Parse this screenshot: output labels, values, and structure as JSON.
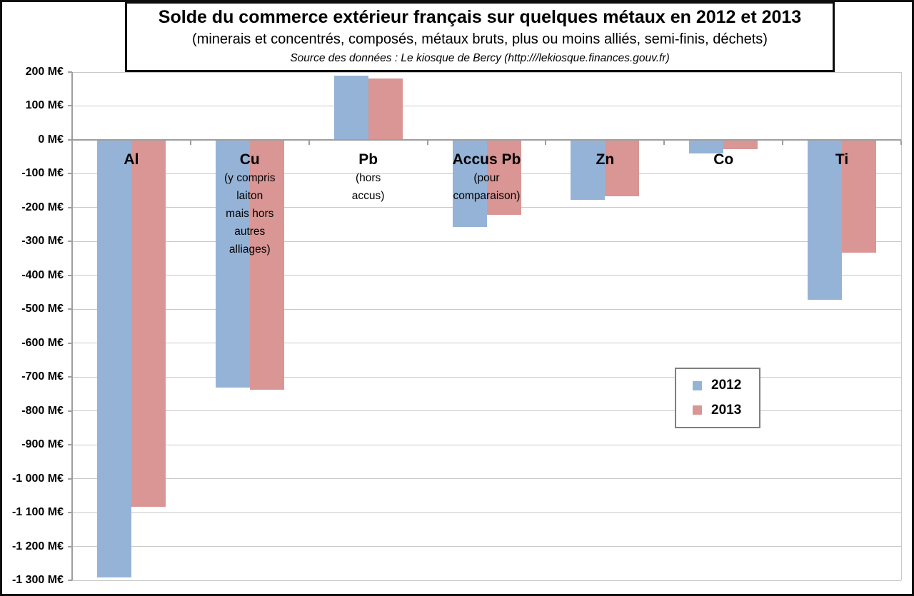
{
  "title": {
    "main": "Solde du commerce extérieur français sur quelques métaux en 2012 et 2013",
    "subtitle": "(minerais et concentrés, composés, métaux bruts, plus ou moins alliés, semi-finis, déchets)",
    "source": "Source des données : Le kiosque de Bercy (http:///lekiosque.finances.gouv.fr)"
  },
  "legend": {
    "items": [
      {
        "label": "2012",
        "color": "#95B3D7"
      },
      {
        "label": "2013",
        "color": "#D99694"
      }
    ]
  },
  "colors": {
    "series_2012": "#95B3D7",
    "series_2013": "#D99694",
    "gridline": "#C9C9C9",
    "axis": "#9E9E9E",
    "frame_border": "#0D0D0D",
    "legend_border": "#7F7F7F"
  },
  "chart_data": {
    "type": "bar",
    "title": "Solde du commerce extérieur français sur quelques métaux en 2012 et 2013",
    "subtitle": "(minerais et concentrés, composés, métaux bruts, plus ou moins alliés, semi-finis, déchets)",
    "source": "Source des données : Le kiosque de Bercy (http:///lekiosque.finances.gouv.fr)",
    "unit": "M€",
    "categories": [
      "Al",
      "Cu",
      "Pb",
      "Accus Pb",
      "Zn",
      "Co",
      "Ti"
    ],
    "category_sublabels": [
      "",
      "(y compris\nlaiton\nmais hors\nautres\nalliages)",
      "(hors\naccus)",
      "(pour\ncomparaison)",
      "",
      "",
      ""
    ],
    "series": [
      {
        "name": "2012",
        "color": "#95B3D7",
        "values": [
          -1290,
          -730,
          190,
          -255,
          -175,
          -38,
          -470
        ]
      },
      {
        "name": "2013",
        "color": "#D99694",
        "values": [
          -1080,
          -735,
          180,
          -220,
          -165,
          -25,
          -330
        ]
      }
    ],
    "ylim": [
      -1300,
      200
    ],
    "ytick_step": 100,
    "ytick_labels": [
      "200 M€",
      "100 M€",
      "0 M€",
      "-100 M€",
      "-200 M€",
      "-300 M€",
      "-400 M€",
      "-500 M€",
      "-600 M€",
      "-700 M€",
      "-800 M€",
      "-900 M€",
      "-1 000 M€",
      "-1 100 M€",
      "-1 200 M€",
      "-1 300 M€"
    ],
    "grid": true,
    "legend_position": "center-right"
  }
}
